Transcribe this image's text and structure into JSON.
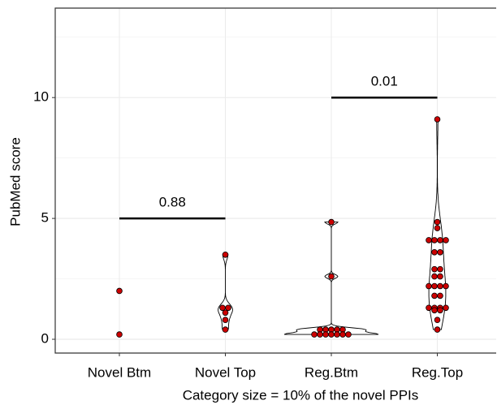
{
  "chart_data": {
    "type": "violin",
    "x_label": "Category size = 10% of the novel PPIs",
    "y_label": "PubMed score",
    "categories": [
      "Novel Btm",
      "Novel Top",
      "Reg.Btm",
      "Reg.Top"
    ],
    "series": [
      {
        "name": "Novel Btm",
        "values": [
          2.0,
          0.2
        ]
      },
      {
        "name": "Novel Top",
        "values": [
          3.5,
          1.3,
          1.3,
          1.1,
          0.8,
          0.4
        ]
      },
      {
        "name": "Reg.Btm",
        "values": [
          4.85,
          2.6,
          0.4,
          0.4,
          0.4,
          0.4,
          0.4,
          0.2,
          0.2,
          0.2,
          0.2,
          0.2,
          0.2,
          0.2
        ]
      },
      {
        "name": "Reg.Top",
        "values": [
          9.1,
          4.85,
          4.6,
          4.1,
          4.1,
          4.1,
          4.1,
          3.6,
          3.6,
          2.9,
          2.9,
          2.6,
          2.6,
          2.2,
          2.2,
          2.2,
          2.2,
          1.8,
          1.8,
          1.3,
          1.3,
          1.3,
          1.3,
          1.2,
          1.2,
          0.8,
          0.4
        ]
      }
    ],
    "point_color": "#cc0000",
    "ylim": [
      -0.57,
      13.7
    ],
    "yticks": [
      0,
      5,
      10
    ],
    "minor_yticks": [
      2.5,
      7.5,
      12.5
    ],
    "grid": true,
    "annotations": [
      {
        "label": "0.88",
        "y": 5,
        "from": "Novel Btm",
        "to": "Novel Top"
      },
      {
        "label": "0.01",
        "y": 10,
        "from": "Reg.Btm",
        "to": "Reg.Top"
      }
    ]
  }
}
